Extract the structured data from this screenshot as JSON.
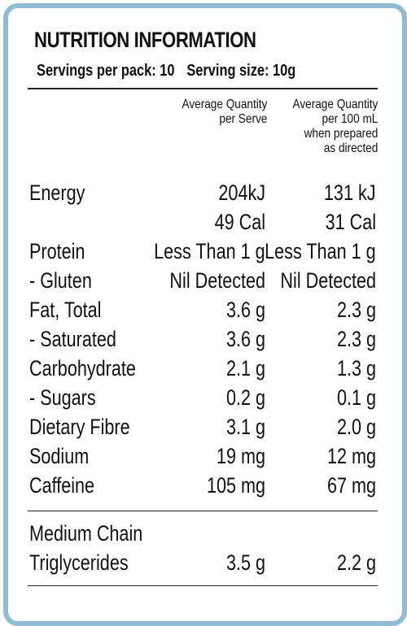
{
  "title": "NUTRITION INFORMATION",
  "servings_per_pack": "Servings per pack: 10",
  "serving_size": "Serving size: 10g",
  "columns": {
    "per_serve": [
      "Average Quantity",
      "per Serve"
    ],
    "per_100ml": [
      "Average Quantity",
      "per 100 mL",
      "when prepared",
      "as directed"
    ]
  },
  "rows": [
    {
      "name": "Energy",
      "per_serve": "204kJ",
      "per_100ml": "131 kJ"
    },
    {
      "name": "",
      "per_serve": "49 Cal",
      "per_100ml": "31 Cal"
    },
    {
      "name": "Protein",
      "per_serve": "Less Than 1 g",
      "per_100ml": "Less Than 1 g"
    },
    {
      "name": "- Gluten",
      "per_serve": "Nil Detected",
      "per_100ml": "Nil Detected"
    },
    {
      "name": "Fat, Total",
      "per_serve": "3.6 g",
      "per_100ml": "2.3 g"
    },
    {
      "name": "- Saturated",
      "per_serve": "3.6 g",
      "per_100ml": "2.3 g"
    },
    {
      "name": "Carbohydrate",
      "per_serve": "2.1 g",
      "per_100ml": "1.3 g"
    },
    {
      "name": "- Sugars",
      "per_serve": "0.2 g",
      "per_100ml": "0.1 g"
    },
    {
      "name": "Dietary Fibre",
      "per_serve": "3.1 g",
      "per_100ml": "2.0 g"
    },
    {
      "name": "Sodium",
      "per_serve": "19 mg",
      "per_100ml": "12 mg"
    },
    {
      "name": "Caffeine",
      "per_serve": "105 mg",
      "per_100ml": "67 mg"
    }
  ],
  "extra_rows": [
    {
      "name": "Medium Chain",
      "per_serve": "",
      "per_100ml": ""
    },
    {
      "name": "Triglycerides",
      "per_serve": "3.5 g",
      "per_100ml": "2.2 g"
    }
  ],
  "colors": {
    "border": "#8fbcd3",
    "text": "#111111"
  }
}
